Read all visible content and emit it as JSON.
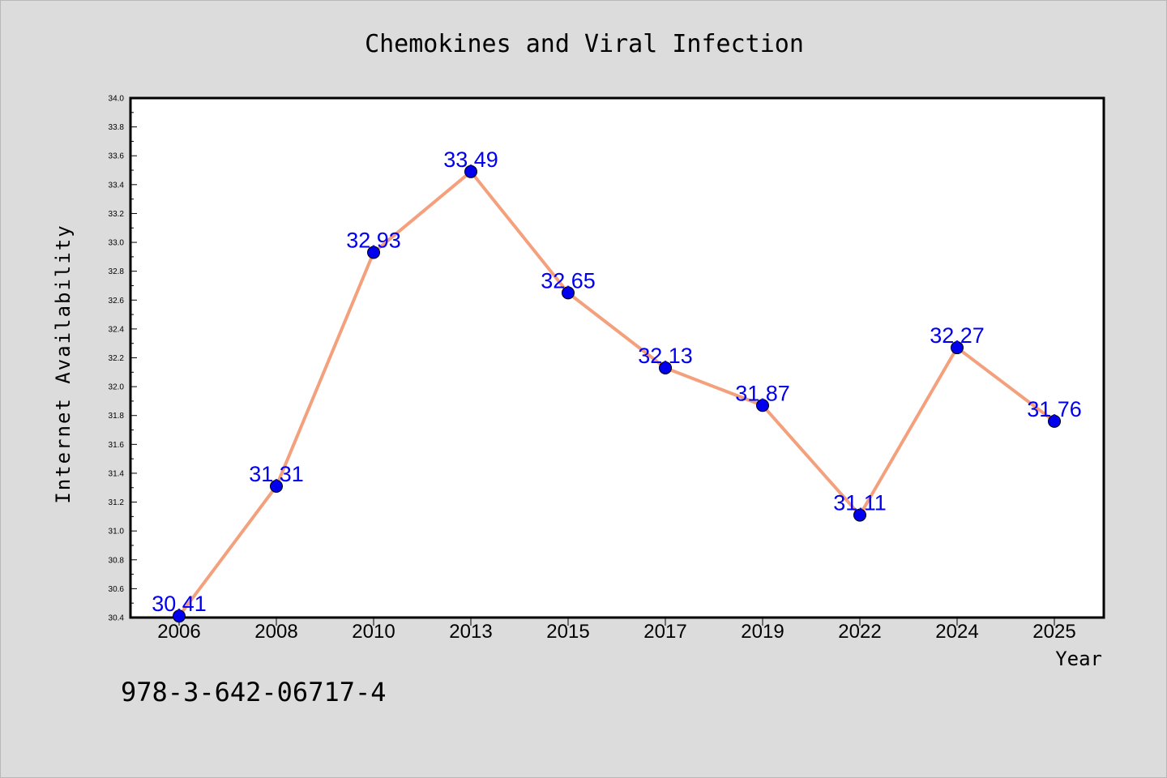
{
  "chart_data": {
    "type": "line",
    "title": "Chemokines and Viral Infection",
    "xlabel": "Year",
    "ylabel": "Internet Availability",
    "categories": [
      "2006",
      "2008",
      "2010",
      "2013",
      "2015",
      "2017",
      "2019",
      "2022",
      "2024",
      "2025"
    ],
    "series": [
      {
        "values": [
          30.41,
          31.31,
          32.93,
          33.49,
          32.65,
          32.13,
          31.87,
          31.11,
          32.27,
          31.76
        ],
        "labels": [
          "30.41",
          "31.31",
          "32.93",
          "33.49",
          "32.65",
          "32.13",
          "31.87",
          "31.11",
          "32.27",
          "31.76"
        ]
      }
    ],
    "ylim": [
      30.4,
      34.0
    ],
    "yticks": [
      "30.4",
      "30.6",
      "30.8",
      "31.0",
      "31.2",
      "31.4",
      "31.6",
      "31.8",
      "32.0",
      "32.2",
      "32.4",
      "32.6",
      "32.8",
      "33.0",
      "33.2",
      "33.4",
      "33.6",
      "33.8",
      "34.0"
    ],
    "grid": false,
    "colors": {
      "line": "#f4a07c",
      "marker": "#0000ee",
      "marker_edge": "#000000",
      "label": "#0000ee",
      "plot_background": "#ffffff",
      "page_background": "#dcdcdc"
    }
  },
  "footnote": "978-3-642-06717-4"
}
